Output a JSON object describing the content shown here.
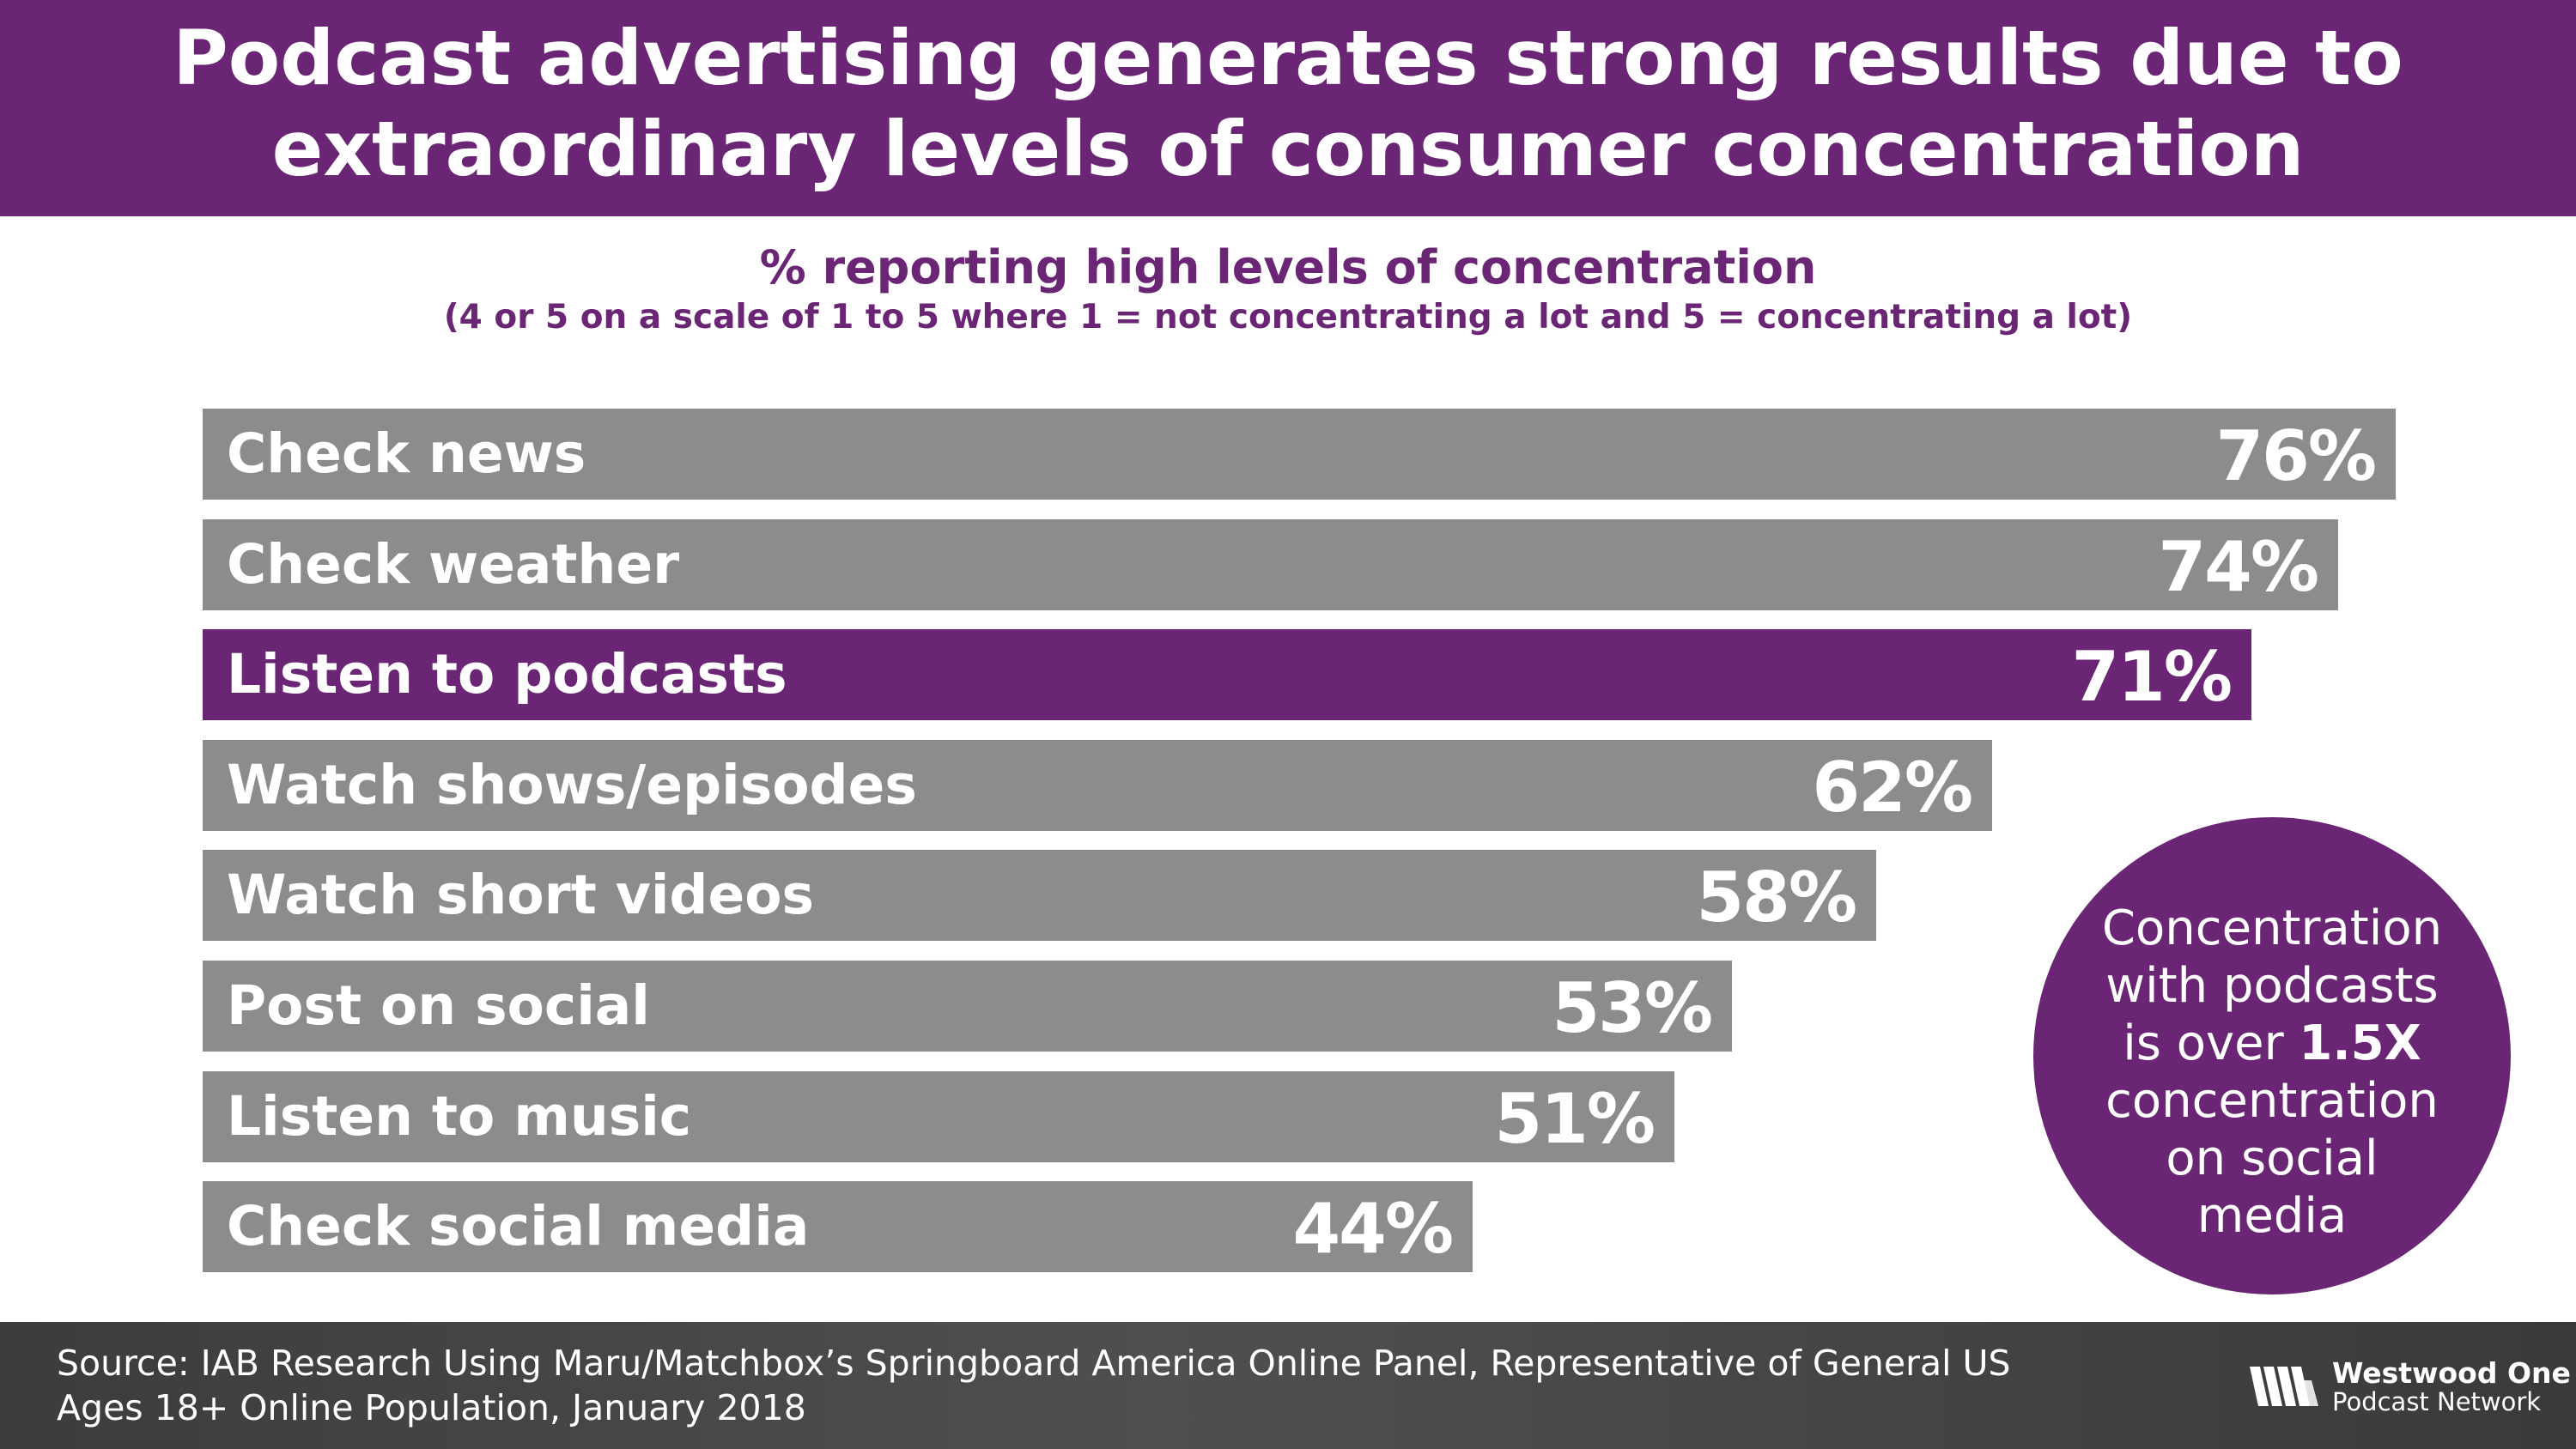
{
  "header": {
    "title_line1": "Podcast advertising generates strong results due to",
    "title_line2": "extraordinary levels of consumer concentration"
  },
  "chart_data": {
    "type": "bar",
    "orientation": "horizontal",
    "title": "% reporting high levels of concentration",
    "subtitle": "(4 or 5 on a scale of 1 to 5 where 1 = not concentrating a lot and 5 = concentrating a lot)",
    "categories": [
      "Check news",
      "Check weather",
      "Listen to podcasts",
      "Watch shows/episodes",
      "Watch short videos",
      "Post on social",
      "Listen to music",
      "Check social media"
    ],
    "values": [
      76,
      74,
      71,
      62,
      58,
      53,
      51,
      44
    ],
    "value_labels": [
      "76%",
      "74%",
      "71%",
      "62%",
      "58%",
      "53%",
      "51%",
      "44%"
    ],
    "highlight_index": 2,
    "xlim": [
      0,
      100
    ],
    "xlabel": "",
    "ylabel": "",
    "grid": false,
    "legend": "none"
  },
  "colors": {
    "brand_purple": "#6a2674",
    "bar_gray": "#8c8c8c"
  },
  "callout": {
    "line1": "Concentration",
    "line2": "with podcasts",
    "line3_prefix": "is over ",
    "line3_bold": "1.5X",
    "line4": "concentration",
    "line5": "on social",
    "line6": "media"
  },
  "footer": {
    "source_line1": "Source: IAB Research Using Maru/Matchbox’s Springboard America Online Panel, Representative of General US",
    "source_line2": "Ages 18+ Online Population, January 2018",
    "brand_name": "Westwood One",
    "brand_sub": "Podcast Network",
    "brand_logo_icon": "westwood-one-logo-icon"
  }
}
